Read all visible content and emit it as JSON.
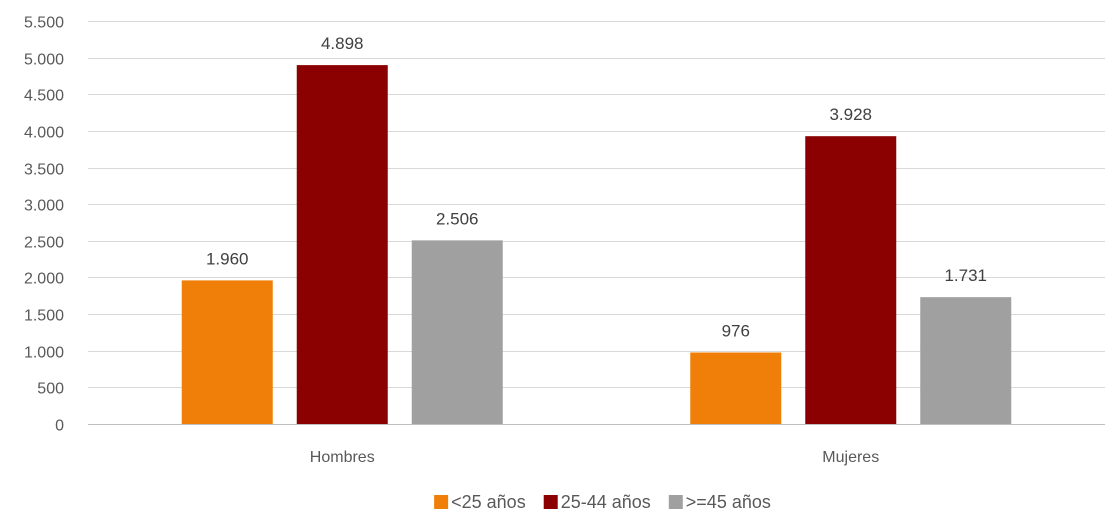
{
  "chart_data": {
    "type": "bar",
    "categories": [
      "Hombres",
      "Mujeres"
    ],
    "series": [
      {
        "name": "<25 años",
        "values": [
          1960,
          976
        ],
        "color": "#f07f09"
      },
      {
        "name": "25-44 años",
        "values": [
          4898,
          3928
        ],
        "color": "#8b0000"
      },
      {
        "name": ">=45 años",
        "values": [
          2506,
          1731
        ],
        "color": "#a0a0a0"
      }
    ],
    "data_labels": [
      [
        "1.960",
        "976"
      ],
      [
        "4.898",
        "3.928"
      ],
      [
        "2.506",
        "1.731"
      ]
    ],
    "y_ticks": [
      0,
      500,
      1000,
      1500,
      2000,
      2500,
      3000,
      3500,
      4000,
      4500,
      5000,
      5500
    ],
    "y_tick_labels": [
      "0",
      "500",
      "1.000",
      "1.500",
      "2.000",
      "2.500",
      "3.000",
      "3.500",
      "4.000",
      "4.500",
      "5.000",
      "5.500"
    ],
    "ylim": [
      0,
      5500
    ],
    "grid": true,
    "legend_position": "bottom"
  }
}
